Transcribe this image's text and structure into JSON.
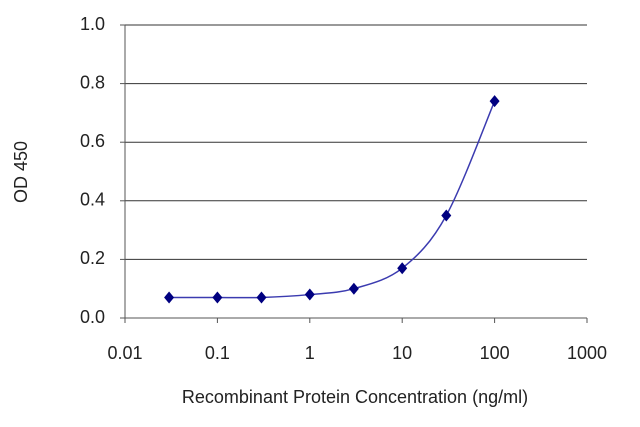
{
  "chart_data": {
    "type": "line",
    "x": [
      0.03,
      0.1,
      0.3,
      1,
      3,
      10,
      30,
      100
    ],
    "values": [
      0.07,
      0.07,
      0.07,
      0.08,
      0.1,
      0.17,
      0.35,
      0.74
    ],
    "line_color": "#3b3bb0",
    "marker_color": "#000080",
    "xscale": "log",
    "xlim": [
      0.01,
      1000
    ],
    "xticks": [
      0.01,
      0.1,
      1,
      10,
      100,
      1000
    ],
    "ylim": [
      0,
      1
    ],
    "yticks": [
      {
        "value": 0,
        "label": "0.0"
      },
      0.2,
      0.4,
      0.6,
      0.8,
      {
        "value": 1,
        "label": "1.0"
      }
    ],
    "grid": true,
    "xlabel": "Recombinant Protein Concentration (ng/ml)",
    "ylabel": "OD 450"
  }
}
